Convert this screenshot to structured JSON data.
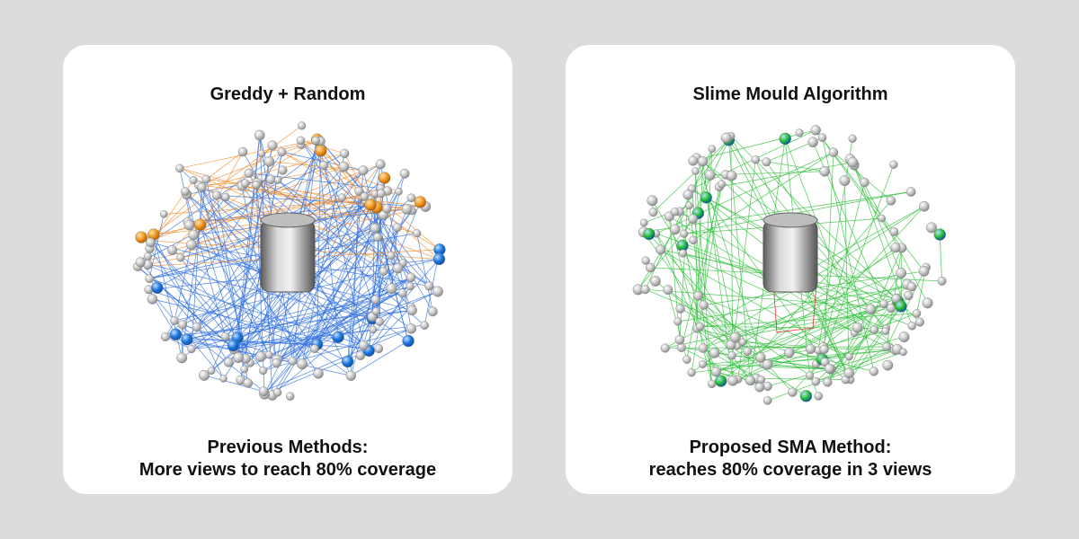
{
  "panels": [
    {
      "title": "Greddy + Random",
      "caption_line1": "Previous Methods:",
      "caption_line2": "More views to reach 80% coverage",
      "colors": {
        "edge_primary": "#2f6fe0",
        "edge_secondary": "#f28c28",
        "highlight_primary": "#1f77e0",
        "highlight_secondary": "#f39a1e",
        "node": "#c8c8c8"
      }
    },
    {
      "title": "Slime Mould Algorithm",
      "caption_line1": "Proposed SMA Method:",
      "caption_line2": "reaches 80% coverage in 3 views",
      "colors": {
        "edge_primary": "#2fbf3a",
        "highlight_primary": "#22c22e",
        "node": "#c8c8c8",
        "accent": "#e03030"
      }
    }
  ]
}
